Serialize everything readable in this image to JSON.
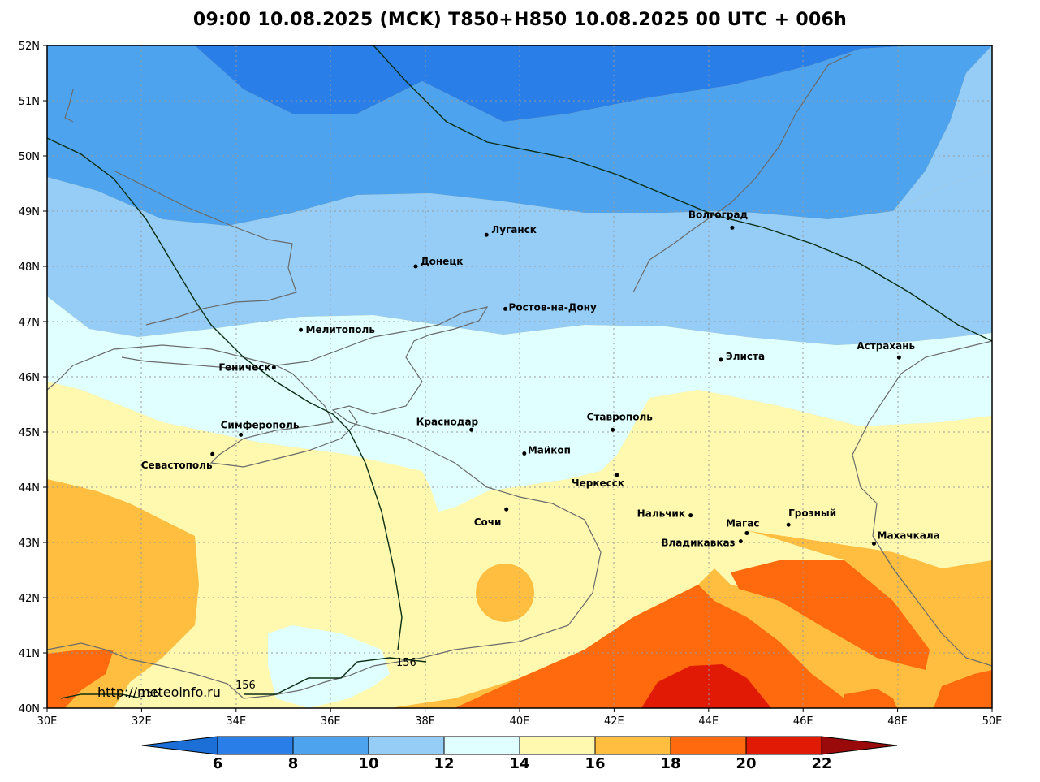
{
  "title": "09:00 10.08.2025 (MCK) T850+H850 10.08.2025 00 UTC + 006h",
  "watermark": "http://meteoinfo.ru",
  "lat_ticks": [
    "52N",
    "51N",
    "50N",
    "49N",
    "48N",
    "47N",
    "46N",
    "45N",
    "44N",
    "43N",
    "42N",
    "41N",
    "40N"
  ],
  "lon_ticks": [
    "30E",
    "32E",
    "34E",
    "36E",
    "38E",
    "40E",
    "42E",
    "44E",
    "46E",
    "48E",
    "50E"
  ],
  "colorbar": {
    "labels": [
      "6",
      "8",
      "10",
      "12",
      "14",
      "16",
      "18",
      "20",
      "22"
    ],
    "colors": [
      "#1c6fd6",
      "#2a7ee8",
      "#4ea3ee",
      "#95cdf7",
      "#e0ffff",
      "#fff9b0",
      "#ffbe40",
      "#ff6a0e",
      "#e11a05",
      "#9a0a0a"
    ]
  },
  "contour_labels": [
    "156",
    "156",
    "156"
  ],
  "cities": [
    {
      "name": "Луганск",
      "lat": 48.57,
      "lon": 39.3
    },
    {
      "name": "Донецк",
      "lat": 48.0,
      "lon": 37.8
    },
    {
      "name": "Волгоград",
      "lat": 48.7,
      "lon": 44.5
    },
    {
      "name": "Ростов-на-Дону",
      "lat": 47.23,
      "lon": 39.7
    },
    {
      "name": "Мелитополь",
      "lat": 46.85,
      "lon": 35.37
    },
    {
      "name": "Элиста",
      "lat": 46.31,
      "lon": 44.26
    },
    {
      "name": "Астрахань",
      "lat": 46.35,
      "lon": 48.03
    },
    {
      "name": "Геническ",
      "lat": 46.17,
      "lon": 34.8
    },
    {
      "name": "Краснодар",
      "lat": 45.04,
      "lon": 38.98
    },
    {
      "name": "Ставрополь",
      "lat": 45.04,
      "lon": 41.97
    },
    {
      "name": "Симферополь",
      "lat": 44.95,
      "lon": 34.1
    },
    {
      "name": "Майкоп",
      "lat": 44.61,
      "lon": 40.1
    },
    {
      "name": "Севастополь",
      "lat": 44.6,
      "lon": 33.5
    },
    {
      "name": "Черкесск",
      "lat": 44.22,
      "lon": 42.06
    },
    {
      "name": "Сочи",
      "lat": 43.6,
      "lon": 39.72
    },
    {
      "name": "Нальчик",
      "lat": 43.49,
      "lon": 43.62
    },
    {
      "name": "Грозный",
      "lat": 43.32,
      "lon": 45.69
    },
    {
      "name": "Магас",
      "lat": 43.17,
      "lon": 44.81
    },
    {
      "name": "Владикавказ",
      "lat": 43.02,
      "lon": 44.68
    },
    {
      "name": "Махачкала",
      "lat": 42.98,
      "lon": 47.5
    }
  ]
}
